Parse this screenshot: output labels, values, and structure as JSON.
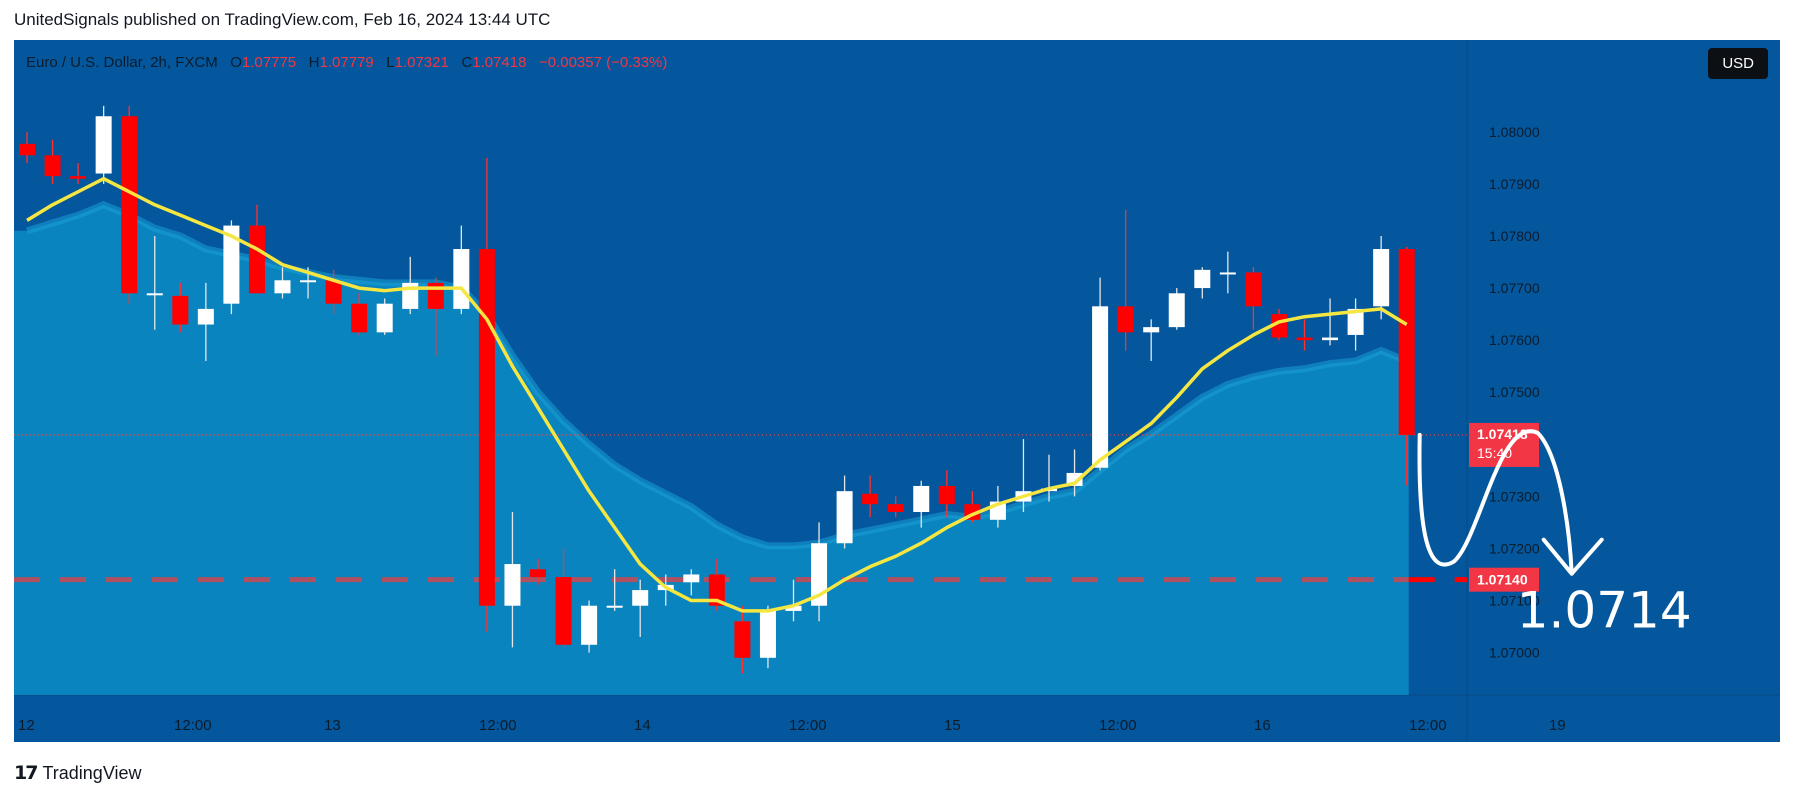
{
  "header": {
    "text": "UnitedSignals published on TradingView.com, Feb 16, 2024 13:44 UTC"
  },
  "legend": {
    "symbol": "Euro / U.S. Dollar, 2h, FXCM",
    "o_key": "O",
    "o_val": "1.07775",
    "h_key": "H",
    "h_val": "1.07779",
    "l_key": "L",
    "l_val": "1.07321",
    "c_key": "C",
    "c_val": "1.07418",
    "change": "−0.00357 (−0.33%)"
  },
  "currency_button": "USD",
  "footer": {
    "logo": "17",
    "brand": "TradingView"
  },
  "colors": {
    "background": "#04579c",
    "area": "#0a84be",
    "up": "#ffffff",
    "down": "#ff0000",
    "ema": "#f5e642",
    "annotation": "#ffffff",
    "level": "#ff0000"
  },
  "chart_data": {
    "type": "candlestick",
    "symbol": "EURUSD",
    "timeframe": "2h",
    "x_ticks": [
      "12",
      "12:00",
      "13",
      "12:00",
      "14",
      "12:00",
      "15",
      "12:00",
      "16",
      "12:00",
      "19"
    ],
    "y_ticks": [
      "1.08000",
      "1.07900",
      "1.07800",
      "1.07700",
      "1.07600",
      "1.07500",
      "1.07300",
      "1.07200",
      "1.07100",
      "1.07000"
    ],
    "ylim": [
      1.0692,
      1.0814
    ],
    "candles": [
      [
        1.07977,
        1.08,
        1.0794,
        1.07955
      ],
      [
        1.07955,
        1.07985,
        1.079,
        1.07915
      ],
      [
        1.07915,
        1.0794,
        1.079,
        1.0791
      ],
      [
        1.0792,
        1.0805,
        1.079,
        1.0803
      ],
      [
        1.0803,
        1.0805,
        1.0767,
        1.0769
      ],
      [
        1.0769,
        1.078,
        1.0762,
        1.0769
      ],
      [
        1.07685,
        1.0771,
        1.07615,
        1.0763
      ],
      [
        1.0763,
        1.0771,
        1.0756,
        1.0766
      ],
      [
        1.0767,
        1.0783,
        1.0765,
        1.0782
      ],
      [
        1.0782,
        1.0786,
        1.0769,
        1.0769
      ],
      [
        1.0769,
        1.0774,
        1.0768,
        1.07715
      ],
      [
        1.07715,
        1.0774,
        1.0768,
        1.07715
      ],
      [
        1.07715,
        1.07735,
        1.0765,
        1.0767
      ],
      [
        1.0767,
        1.0769,
        1.0761,
        1.07615
      ],
      [
        1.07615,
        1.0768,
        1.0761,
        1.0767
      ],
      [
        1.0766,
        1.0776,
        1.0765,
        1.0771
      ],
      [
        1.0771,
        1.0772,
        1.0757,
        1.0766
      ],
      [
        1.0766,
        1.0782,
        1.0765,
        1.07775
      ],
      [
        1.07775,
        1.0795,
        1.0704,
        1.0709
      ],
      [
        1.0709,
        1.0727,
        1.0701,
        1.0717
      ],
      [
        1.0716,
        1.0718,
        1.0713,
        1.07145
      ],
      [
        1.07145,
        1.072,
        1.0701,
        1.07015
      ],
      [
        1.07015,
        1.071,
        1.07,
        1.0709
      ],
      [
        1.0709,
        1.0716,
        1.0708,
        1.0709
      ],
      [
        1.0709,
        1.0714,
        1.0703,
        1.0712
      ],
      [
        1.0712,
        1.0715,
        1.0709,
        1.0713
      ],
      [
        1.07135,
        1.0716,
        1.0711,
        1.0715
      ],
      [
        1.0715,
        1.0718,
        1.0708,
        1.0709
      ],
      [
        1.0706,
        1.0709,
        1.0696,
        1.0699
      ],
      [
        1.0699,
        1.0709,
        1.0697,
        1.0708
      ],
      [
        1.0708,
        1.0714,
        1.0706,
        1.0709
      ],
      [
        1.0709,
        1.0725,
        1.0706,
        1.0721
      ],
      [
        1.0721,
        1.0734,
        1.072,
        1.0731
      ],
      [
        1.07305,
        1.0734,
        1.0726,
        1.07285
      ],
      [
        1.07285,
        1.073,
        1.0726,
        1.0727
      ],
      [
        1.0727,
        1.0733,
        1.0724,
        1.0732
      ],
      [
        1.0732,
        1.0735,
        1.0726,
        1.07285
      ],
      [
        1.07285,
        1.0731,
        1.0725,
        1.07255
      ],
      [
        1.07255,
        1.0732,
        1.0724,
        1.0729
      ],
      [
        1.0729,
        1.0741,
        1.0727,
        1.0731
      ],
      [
        1.0731,
        1.0738,
        1.0729,
        1.07315
      ],
      [
        1.0732,
        1.0739,
        1.073,
        1.07345
      ],
      [
        1.07355,
        1.0772,
        1.0735,
        1.07665
      ],
      [
        1.07665,
        1.0785,
        1.0758,
        1.07615
      ],
      [
        1.07615,
        1.0764,
        1.0756,
        1.07625
      ],
      [
        1.07625,
        1.077,
        1.0762,
        1.0769
      ],
      [
        1.077,
        1.0774,
        1.0768,
        1.07735
      ],
      [
        1.0773,
        1.0777,
        1.0769,
        1.0773
      ],
      [
        1.0773,
        1.0774,
        1.0762,
        1.07665
      ],
      [
        1.0765,
        1.0766,
        1.076,
        1.07605
      ],
      [
        1.07605,
        1.0764,
        1.0758,
        1.076
      ],
      [
        1.076,
        1.0768,
        1.0759,
        1.07605
      ],
      [
        1.0761,
        1.0768,
        1.0758,
        1.0766
      ],
      [
        1.07665,
        1.078,
        1.0764,
        1.07775
      ],
      [
        1.07775,
        1.07779,
        1.07321,
        1.07418
      ]
    ],
    "ema": [
      1.0783,
      1.0786,
      1.07885,
      1.0791,
      1.07885,
      1.0786,
      1.0784,
      1.0782,
      1.078,
      1.07775,
      1.07745,
      1.0773,
      1.07715,
      1.077,
      1.07695,
      1.077,
      1.077,
      1.077,
      1.0764,
      1.0755,
      1.0747,
      1.0739,
      1.0731,
      1.0724,
      1.0717,
      1.07125,
      1.071,
      1.071,
      1.0708,
      1.0708,
      1.0709,
      1.0711,
      1.0714,
      1.07165,
      1.07185,
      1.0721,
      1.0724,
      1.07265,
      1.07285,
      1.073,
      1.07315,
      1.07325,
      1.0737,
      1.07405,
      1.0744,
      1.0749,
      1.07545,
      1.0758,
      1.0761,
      1.07635,
      1.07645,
      1.0765,
      1.07655,
      1.0766,
      1.0763
    ],
    "band": [
      1.0781,
      1.07825,
      1.0784,
      1.0786,
      1.0784,
      1.07815,
      1.078,
      1.07775,
      1.07765,
      1.07755,
      1.0774,
      1.0773,
      1.0772,
      1.07715,
      1.0771,
      1.0771,
      1.0771,
      1.077,
      1.0765,
      1.0757,
      1.075,
      1.07445,
      1.074,
      1.0736,
      1.0733,
      1.07305,
      1.0728,
      1.07245,
      1.0722,
      1.07205,
      1.07205,
      1.0721,
      1.07225,
      1.07235,
      1.07245,
      1.07255,
      1.07265,
      1.0726,
      1.0727,
      1.07285,
      1.073,
      1.0731,
      1.0735,
      1.0739,
      1.0742,
      1.07455,
      1.0749,
      1.07515,
      1.0753,
      1.0754,
      1.07545,
      1.07555,
      1.0756,
      1.0758,
      1.0756
    ],
    "last_price": {
      "label": "1.07418",
      "countdown": "15:40"
    },
    "level": {
      "value": 1.0714,
      "label": "1.07140",
      "annotation": "1.0714"
    }
  }
}
